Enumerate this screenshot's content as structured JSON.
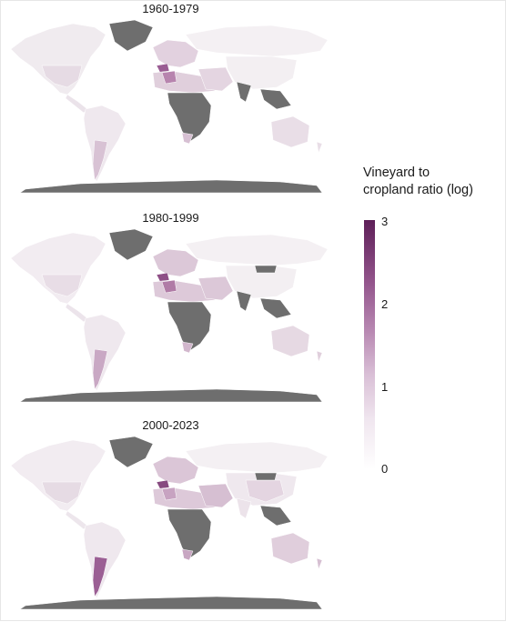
{
  "panels": [
    {
      "title": "1960-1979"
    },
    {
      "title": "1980-1999"
    },
    {
      "title": "2000-2023"
    }
  ],
  "legend": {
    "title_line1": "Vineyard to",
    "title_line2": "cropland ratio (log)",
    "ticks": [
      "3",
      "2",
      "1",
      "0"
    ],
    "range": [
      0,
      3
    ]
  },
  "colors": {
    "no_data": "#6e6e6e",
    "low": "#f2ecf1",
    "high": "#5e1f58",
    "borders": "#ffffff"
  }
}
